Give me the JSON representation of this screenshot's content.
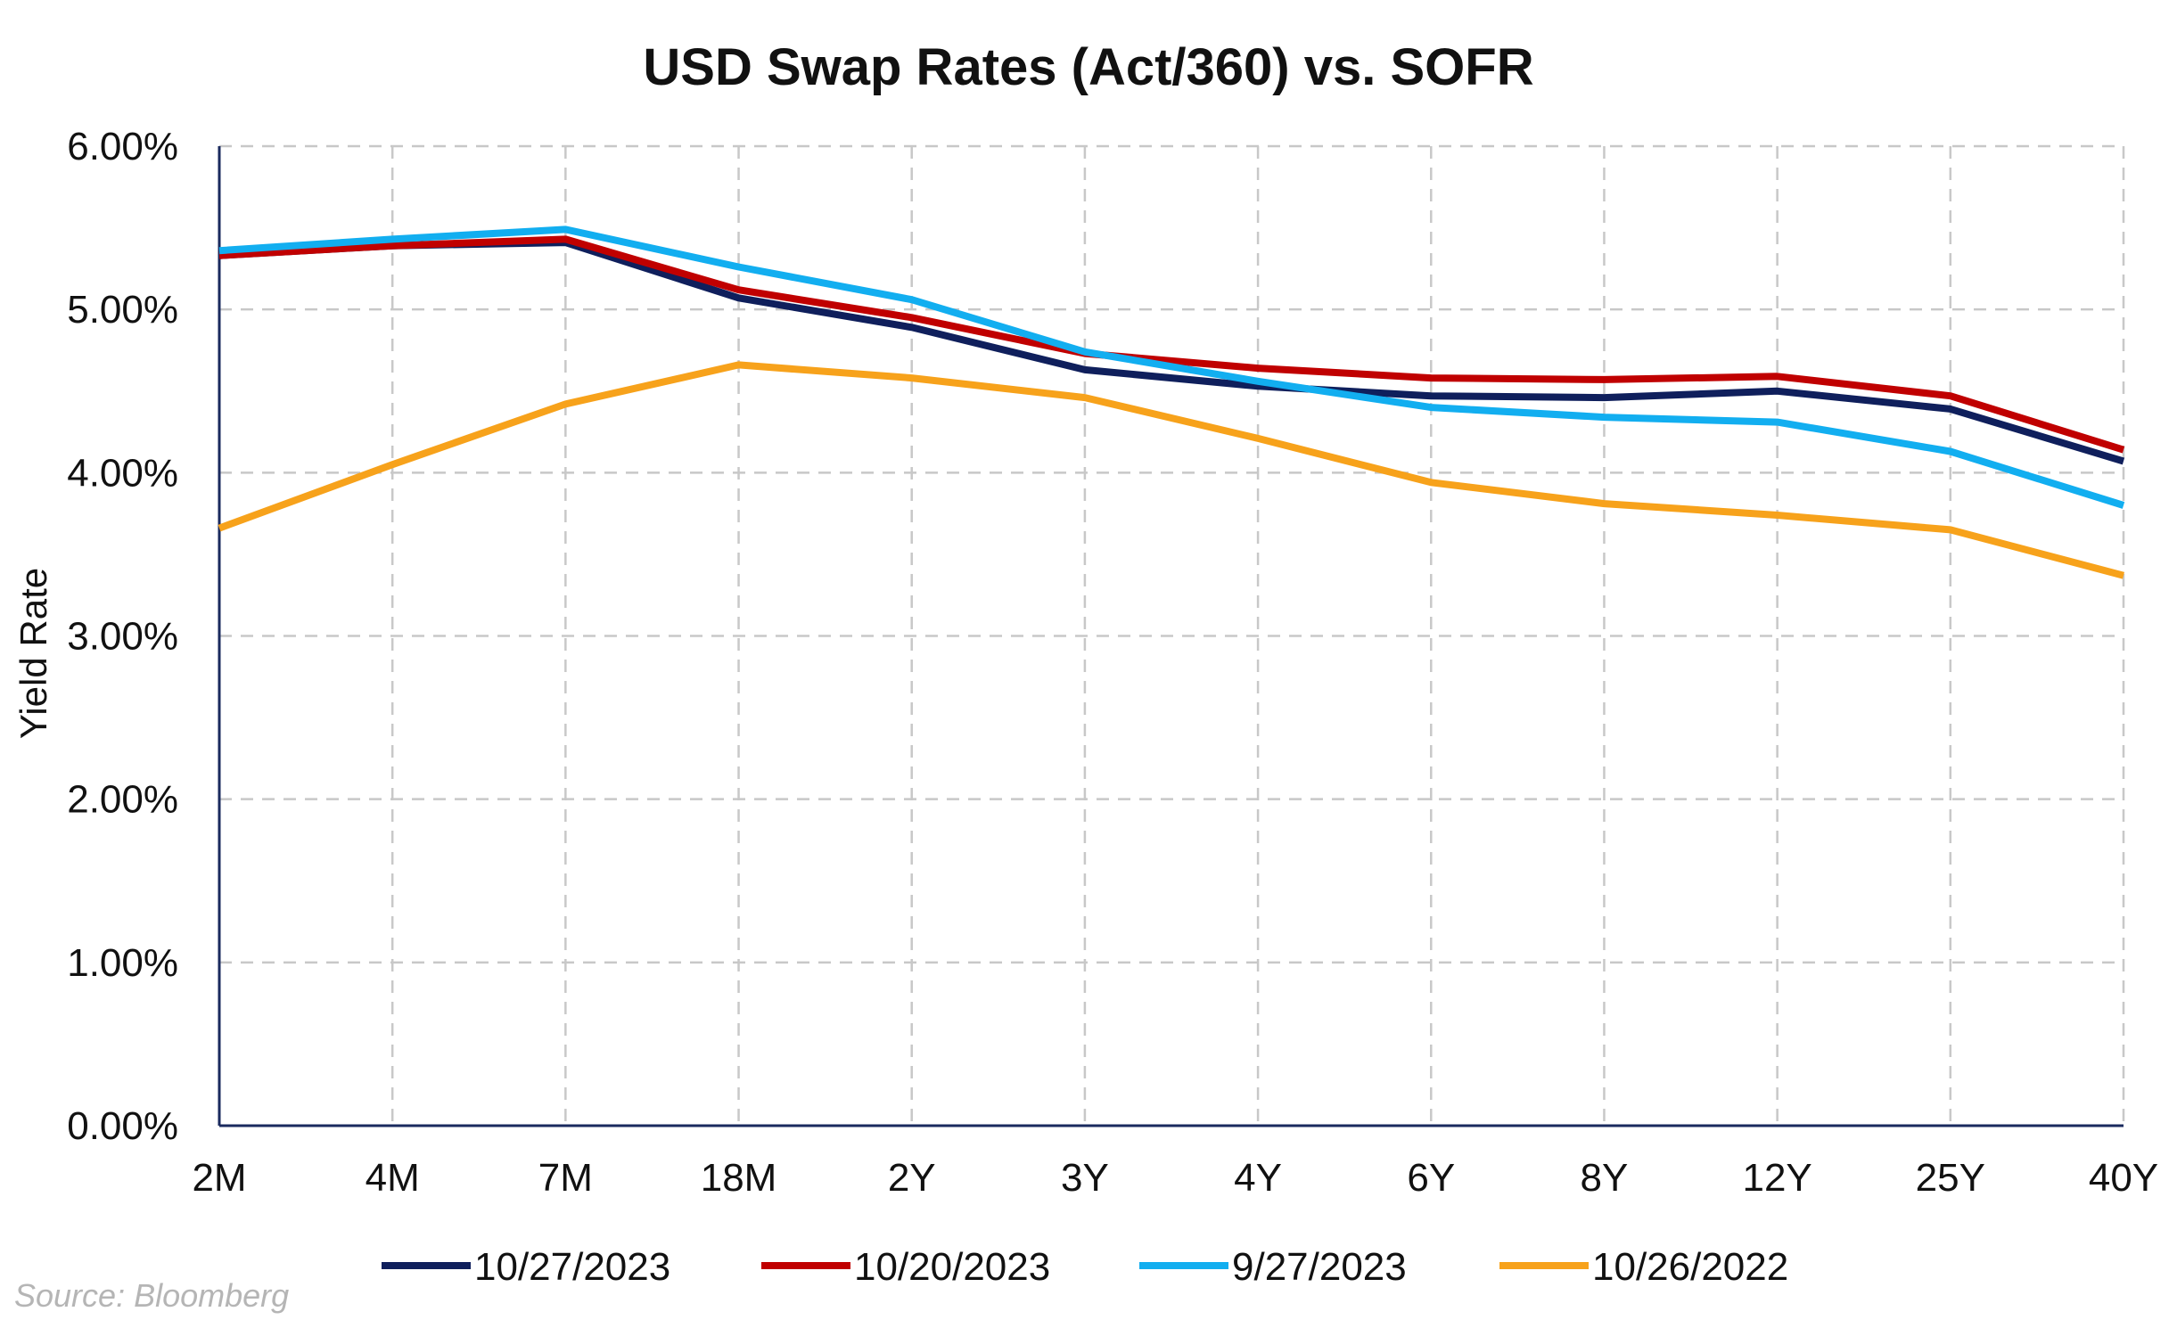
{
  "chart_data": {
    "type": "line",
    "title": "USD Swap Rates (Act/360) vs. SOFR",
    "xlabel": "",
    "ylabel": "Yield Rate",
    "categories": [
      "2M",
      "4M",
      "7M",
      "18M",
      "2Y",
      "3Y",
      "4Y",
      "6Y",
      "8Y",
      "12Y",
      "25Y",
      "40Y"
    ],
    "ylim": [
      0,
      6
    ],
    "yticks": [
      {
        "value": 0,
        "label": "0.00%"
      },
      {
        "value": 1,
        "label": "1.00%"
      },
      {
        "value": 2,
        "label": "2.00%"
      },
      {
        "value": 3,
        "label": "3.00%"
      },
      {
        "value": 4,
        "label": "4.00%"
      },
      {
        "value": 5,
        "label": "5.00%"
      },
      {
        "value": 6,
        "label": "6.00%"
      }
    ],
    "grid": true,
    "legend_position": "bottom",
    "series": [
      {
        "name": "10/27/2023",
        "color": "#0f1f5c",
        "values": [
          5.33,
          5.39,
          5.41,
          5.07,
          4.89,
          4.63,
          4.53,
          4.47,
          4.46,
          4.5,
          4.39,
          4.07
        ]
      },
      {
        "name": "10/20/2023",
        "color": "#c00000",
        "values": [
          5.33,
          5.39,
          5.43,
          5.12,
          4.95,
          4.73,
          4.64,
          4.58,
          4.57,
          4.59,
          4.47,
          4.14
        ]
      },
      {
        "name": "9/27/2023",
        "color": "#12aef0",
        "values": [
          5.36,
          5.43,
          5.49,
          5.26,
          5.06,
          4.74,
          4.56,
          4.4,
          4.34,
          4.31,
          4.13,
          3.8
        ]
      },
      {
        "name": "10/26/2022",
        "color": "#f7a21b",
        "values": [
          3.66,
          4.05,
          4.42,
          4.66,
          4.58,
          4.46,
          4.21,
          3.94,
          3.81,
          3.74,
          3.65,
          3.37
        ]
      }
    ]
  },
  "source_note": "Source: Bloomberg"
}
